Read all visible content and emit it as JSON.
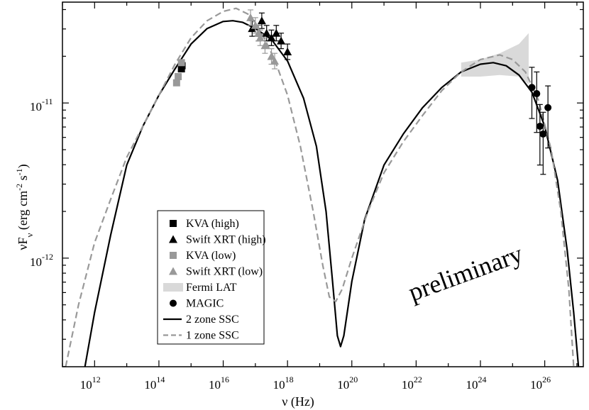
{
  "chart_data": {
    "type": "scatter",
    "xlabel": "ν (Hz)",
    "ylabel": "νF_ν (erg cm^-2 s^-1)",
    "xlim_log10": [
      11.0,
      27.2
    ],
    "ylim_log10": [
      -12.7,
      -10.35
    ],
    "log_x": true,
    "log_y": true,
    "grid": false,
    "legend_position": "lower-center",
    "annotation": "preliminary",
    "x_tick_labels": [
      {
        "base": "10",
        "exp": "12",
        "log": 12
      },
      {
        "base": "10",
        "exp": "14",
        "log": 14
      },
      {
        "base": "10",
        "exp": "16",
        "log": 16
      },
      {
        "base": "10",
        "exp": "18",
        "log": 18
      },
      {
        "base": "10",
        "exp": "20",
        "log": 20
      },
      {
        "base": "10",
        "exp": "22",
        "log": 22
      },
      {
        "base": "10",
        "exp": "24",
        "log": 24
      },
      {
        "base": "10",
        "exp": "26",
        "log": 26
      }
    ],
    "y_tick_labels": [
      {
        "base": "10",
        "exp": "-11",
        "log": -11
      },
      {
        "base": "10",
        "exp": "-12",
        "log": -12
      }
    ],
    "series": [
      {
        "name": "KVA (high)",
        "marker": "square",
        "color": "#000000",
        "points": [
          {
            "log_nu": 14.7,
            "log_y": -10.78
          },
          {
            "log_nu": 14.72,
            "log_y": -10.76
          }
        ]
      },
      {
        "name": "Swift XRT (high)",
        "marker": "triangle",
        "color": "#000000",
        "points": [
          {
            "log_nu": 16.9,
            "log_y": -10.52,
            "err": 0.05
          },
          {
            "log_nu": 17.1,
            "log_y": -10.55,
            "err": 0.05
          },
          {
            "log_nu": 17.2,
            "log_y": -10.47,
            "err": 0.05
          },
          {
            "log_nu": 17.35,
            "log_y": -10.55,
            "err": 0.05
          },
          {
            "log_nu": 17.5,
            "log_y": -10.58,
            "err": 0.05
          },
          {
            "log_nu": 17.65,
            "log_y": -10.55,
            "err": 0.05
          },
          {
            "log_nu": 17.8,
            "log_y": -10.6,
            "err": 0.05
          },
          {
            "log_nu": 18.0,
            "log_y": -10.67,
            "err": 0.05
          }
        ]
      },
      {
        "name": "KVA (low)",
        "marker": "square",
        "color": "#999999",
        "points": [
          {
            "log_nu": 14.55,
            "log_y": -10.87
          },
          {
            "log_nu": 14.6,
            "log_y": -10.83
          },
          {
            "log_nu": 14.7,
            "log_y": -10.74
          }
        ]
      },
      {
        "name": "Swift XRT (low)",
        "marker": "triangle",
        "color": "#999999",
        "points": [
          {
            "log_nu": 16.85,
            "log_y": -10.45,
            "err": 0.05
          },
          {
            "log_nu": 17.0,
            "log_y": -10.5,
            "err": 0.05
          },
          {
            "log_nu": 17.1,
            "log_y": -10.55,
            "err": 0.05
          },
          {
            "log_nu": 17.15,
            "log_y": -10.58,
            "err": 0.05
          },
          {
            "log_nu": 17.3,
            "log_y": -10.63,
            "err": 0.05
          },
          {
            "log_nu": 17.5,
            "log_y": -10.7,
            "err": 0.05
          },
          {
            "log_nu": 17.6,
            "log_y": -10.73,
            "err": 0.05
          }
        ]
      },
      {
        "name": "Fermi LAT",
        "marker": "band",
        "color": "#d9d9d9",
        "upper": [
          [
            23.4,
            -10.74
          ],
          [
            24.0,
            -10.72
          ],
          [
            24.6,
            -10.68
          ],
          [
            25.2,
            -10.62
          ],
          [
            25.5,
            -10.55
          ]
        ],
        "lower": [
          [
            23.4,
            -10.83
          ],
          [
            24.0,
            -10.83
          ],
          [
            24.6,
            -10.82
          ],
          [
            25.2,
            -10.83
          ],
          [
            25.5,
            -10.88
          ]
        ]
      },
      {
        "name": "MAGIC",
        "marker": "circle",
        "color": "#000000",
        "points": [
          {
            "log_nu": 25.6,
            "log_y": -10.9,
            "err_up": 0.13,
            "err_dn": 0.2
          },
          {
            "log_nu": 25.75,
            "log_y": -10.94,
            "err_up": 0.14,
            "err_dn": 0.25
          },
          {
            "log_nu": 25.85,
            "log_y": -11.15,
            "err_up": 0.14,
            "err_dn": 0.25
          },
          {
            "log_nu": 25.95,
            "log_y": -11.2,
            "err_up": 0.14,
            "err_dn": 0.26
          },
          {
            "log_nu": 26.1,
            "log_y": -11.03,
            "err_up": 0.14,
            "err_dn": 0.26
          }
        ]
      },
      {
        "name": "2 zone SSC",
        "marker": "line",
        "color": "#000000",
        "dash": "solid",
        "curve": [
          [
            11.7,
            -12.7
          ],
          [
            12.0,
            -12.35
          ],
          [
            12.5,
            -11.85
          ],
          [
            13.0,
            -11.4
          ],
          [
            13.5,
            -11.15
          ],
          [
            14.0,
            -10.95
          ],
          [
            14.5,
            -10.78
          ],
          [
            15.0,
            -10.62
          ],
          [
            15.5,
            -10.52
          ],
          [
            16.0,
            -10.475
          ],
          [
            16.3,
            -10.47
          ],
          [
            16.6,
            -10.48
          ],
          [
            17.0,
            -10.52
          ],
          [
            17.5,
            -10.59
          ],
          [
            18.0,
            -10.73
          ],
          [
            18.5,
            -10.97
          ],
          [
            18.9,
            -11.28
          ],
          [
            19.2,
            -11.7
          ],
          [
            19.4,
            -12.15
          ],
          [
            19.55,
            -12.5
          ],
          [
            19.65,
            -12.57
          ],
          [
            19.75,
            -12.5
          ],
          [
            20.0,
            -12.15
          ],
          [
            20.4,
            -11.75
          ],
          [
            21.0,
            -11.4
          ],
          [
            21.6,
            -11.2
          ],
          [
            22.2,
            -11.03
          ],
          [
            22.8,
            -10.9
          ],
          [
            23.4,
            -10.8
          ],
          [
            24.0,
            -10.75
          ],
          [
            24.4,
            -10.74
          ],
          [
            24.8,
            -10.76
          ],
          [
            25.2,
            -10.82
          ],
          [
            25.6,
            -10.93
          ],
          [
            26.0,
            -11.15
          ],
          [
            26.4,
            -11.5
          ],
          [
            26.7,
            -11.95
          ],
          [
            26.9,
            -12.35
          ],
          [
            27.05,
            -12.7
          ]
        ]
      },
      {
        "name": "1 zone SSC",
        "marker": "line",
        "color": "#999999",
        "dash": "dashed",
        "curve": [
          [
            11.1,
            -12.7
          ],
          [
            11.5,
            -12.3
          ],
          [
            12.0,
            -11.9
          ],
          [
            12.5,
            -11.62
          ],
          [
            13.0,
            -11.35
          ],
          [
            13.5,
            -11.15
          ],
          [
            14.0,
            -10.95
          ],
          [
            14.5,
            -10.75
          ],
          [
            15.0,
            -10.58
          ],
          [
            15.5,
            -10.47
          ],
          [
            16.0,
            -10.41
          ],
          [
            16.4,
            -10.39
          ],
          [
            16.8,
            -10.43
          ],
          [
            17.2,
            -10.55
          ],
          [
            17.6,
            -10.72
          ],
          [
            18.0,
            -10.95
          ],
          [
            18.4,
            -11.28
          ],
          [
            18.8,
            -11.7
          ],
          [
            19.1,
            -12.05
          ],
          [
            19.3,
            -12.25
          ],
          [
            19.5,
            -12.28
          ],
          [
            19.7,
            -12.2
          ],
          [
            20.0,
            -12.0
          ],
          [
            20.5,
            -11.7
          ],
          [
            21.0,
            -11.45
          ],
          [
            21.6,
            -11.25
          ],
          [
            22.2,
            -11.08
          ],
          [
            22.8,
            -10.92
          ],
          [
            23.4,
            -10.8
          ],
          [
            24.0,
            -10.72
          ],
          [
            24.6,
            -10.69
          ],
          [
            25.0,
            -10.72
          ],
          [
            25.4,
            -10.8
          ],
          [
            25.8,
            -10.98
          ],
          [
            26.2,
            -11.3
          ],
          [
            26.5,
            -11.7
          ],
          [
            26.75,
            -12.2
          ],
          [
            26.9,
            -12.7
          ]
        ]
      }
    ]
  }
}
